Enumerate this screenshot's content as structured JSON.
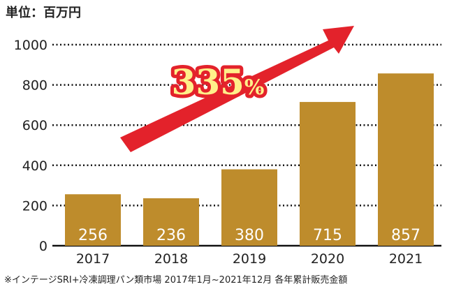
{
  "chart_data": {
    "type": "bar",
    "unit_label": "単位：百万円",
    "categories": [
      "2017",
      "2018",
      "2019",
      "2020",
      "2021"
    ],
    "values": [
      256,
      236,
      380,
      715,
      857
    ],
    "yticks": [
      "0",
      "200",
      "400",
      "600",
      "800",
      "1000"
    ],
    "ylim": [
      0,
      1000
    ],
    "grid": true,
    "annotation": "335%",
    "annotation_number": "335",
    "annotation_suffix": "%",
    "footnote": "※インテージSRI+冷凍調理パン類市場 2017年1月~2021年12月 各年累計販売金額",
    "colors": {
      "bar": "#BE8C2C",
      "arrow": "#E3222B",
      "annotation_text": "#FFF08A"
    }
  }
}
